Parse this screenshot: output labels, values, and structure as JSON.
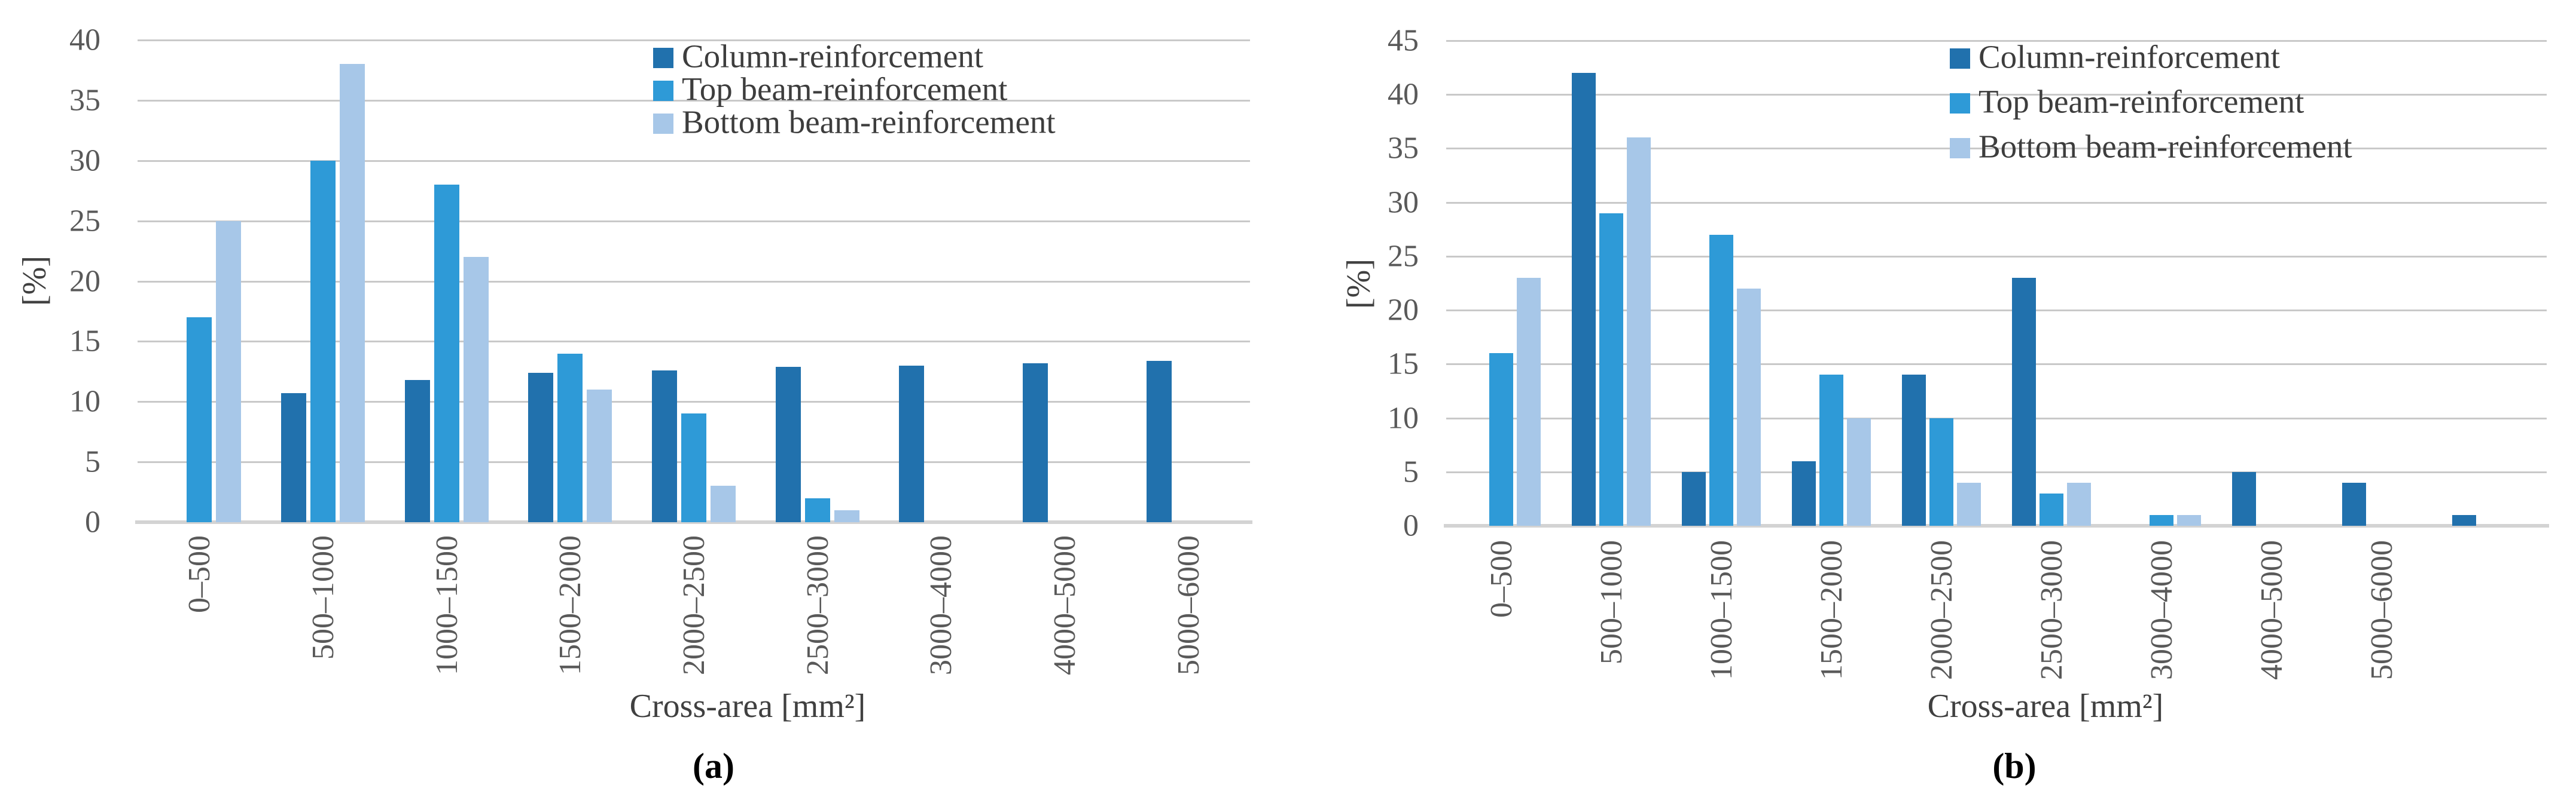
{
  "figure": {
    "background": "#ffffff",
    "text_color": "#404040",
    "tick_color": "#595959",
    "gridline_color": "#c9c9c9",
    "axis_line_color": "#d3d3d3",
    "series_colors": [
      "#2171ad",
      "#2e9ad7",
      "#a7c7e8"
    ]
  },
  "chart_data": [
    {
      "type": "bar",
      "panel": "a",
      "caption": "(a)",
      "ylabel": "[%]",
      "xlabel": "Cross-area [mm²]",
      "ylim": [
        0,
        40
      ],
      "ytick_step": 5,
      "yticks": [
        40,
        35,
        30,
        25,
        20,
        15,
        10,
        5,
        0
      ],
      "grid": true,
      "legend_position": "top-right-inside",
      "categories": [
        "0–500",
        "500–1000",
        "1000–1500",
        "1500–2000",
        "2000–2500",
        "2500–3000",
        "3000–4000",
        "4000–5000",
        "5000–6000"
      ],
      "series": [
        {
          "name": "Column-reinforcement",
          "values": [
            0,
            10.7,
            11.8,
            12.4,
            12.6,
            12.9,
            13,
            13.2,
            13.4
          ]
        },
        {
          "name": "Top beam-reinforcement",
          "values": [
            17,
            30,
            28,
            14,
            9,
            2,
            0,
            0,
            0
          ]
        },
        {
          "name": "Bottom beam-reinforcement",
          "values": [
            25,
            38,
            22,
            11,
            3,
            1,
            0,
            0,
            0
          ]
        }
      ]
    },
    {
      "type": "bar",
      "panel": "b",
      "caption": "(b)",
      "ylabel": "[%]",
      "xlabel": "Cross-area [mm²]",
      "ylim": [
        0,
        45
      ],
      "ytick_step": 5,
      "yticks": [
        45,
        40,
        35,
        30,
        25,
        20,
        15,
        10,
        5,
        0
      ],
      "grid": true,
      "legend_position": "top-right-inside",
      "categories": [
        "0–500",
        "500–1000",
        "1000–1500",
        "1500–2000",
        "2000–2500",
        "2500–3000",
        "3000–4000",
        "4000–5000",
        "5000–6000",
        ""
      ],
      "series": [
        {
          "name": "Column-reinforcement",
          "values": [
            0,
            42,
            5,
            6,
            14,
            23,
            0,
            5,
            4,
            1
          ]
        },
        {
          "name": "Top beam-reinforcement",
          "values": [
            16,
            29,
            27,
            14,
            10,
            3,
            1,
            0,
            0,
            0
          ]
        },
        {
          "name": "Bottom beam-reinforcement",
          "values": [
            23,
            36,
            22,
            10,
            4,
            4,
            1,
            0,
            0,
            0
          ]
        }
      ]
    }
  ]
}
